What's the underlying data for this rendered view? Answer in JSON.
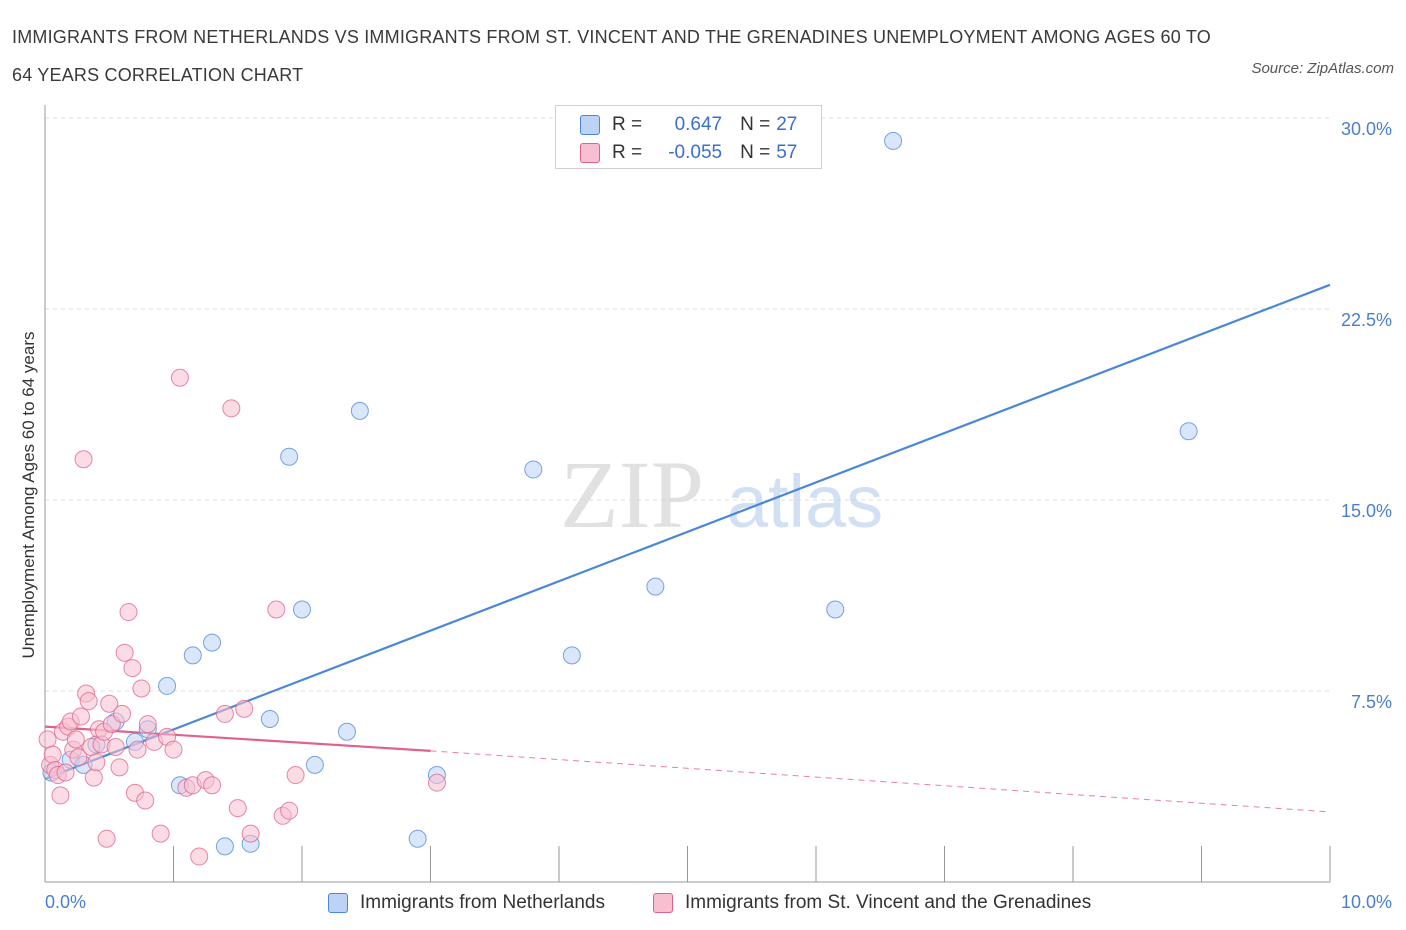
{
  "title": "IMMIGRANTS FROM NETHERLANDS VS IMMIGRANTS FROM ST. VINCENT AND THE GRENADINES UNEMPLOYMENT AMONG AGES 60 TO 64 YEARS CORRELATION CHART",
  "source": "Source: ZipAtlas.com",
  "watermark": {
    "zip": "ZIP",
    "atlas": "atlas"
  },
  "colors": {
    "blue": "#4a87d8",
    "blue_fill": "#bcd3f5",
    "pink": "#e0608e",
    "pink_fill": "#f7bfd0",
    "tick": "#4a7fd0",
    "grid": "#dddddd"
  },
  "legend": {
    "rows": [
      {
        "r_label": "R =",
        "r_value": "0.647",
        "n_label": "N =",
        "n_value": "27"
      },
      {
        "r_label": "R =",
        "r_value": "-0.055",
        "n_label": "N =",
        "n_value": "57"
      }
    ]
  },
  "chart_data": {
    "type": "scatter",
    "title": "IMMIGRANTS FROM NETHERLANDS VS IMMIGRANTS FROM ST. VINCENT AND THE GRENADINES UNEMPLOYMENT AMONG AGES 60 TO 64 YEARS CORRELATION CHART",
    "xlabel": "",
    "ylabel": "Unemployment Among Ages 60 to 64 years",
    "xlim": [
      0,
      10
    ],
    "ylim": [
      0,
      30
    ],
    "x_tick_labels": [
      "0.0%",
      "10.0%"
    ],
    "y_tick_labels": [
      "7.5%",
      "15.0%",
      "22.5%",
      "30.0%"
    ],
    "y_ticks": [
      7.5,
      15,
      22.5,
      30
    ],
    "grid": true,
    "legend_position": "top-center",
    "series": [
      {
        "name": "Immigrants from Netherlands",
        "color": "#4a87d8",
        "points": [
          [
            0.05,
            4.3
          ],
          [
            0.2,
            4.8
          ],
          [
            0.3,
            4.6
          ],
          [
            0.4,
            5.4
          ],
          [
            0.55,
            6.3
          ],
          [
            0.7,
            5.5
          ],
          [
            0.8,
            6.0
          ],
          [
            0.95,
            7.7
          ],
          [
            1.05,
            3.8
          ],
          [
            1.15,
            8.9
          ],
          [
            1.3,
            9.4
          ],
          [
            1.4,
            1.4
          ],
          [
            1.6,
            1.5
          ],
          [
            1.75,
            6.4
          ],
          [
            1.9,
            16.7
          ],
          [
            2.0,
            10.7
          ],
          [
            2.1,
            4.6
          ],
          [
            2.35,
            5.9
          ],
          [
            2.45,
            18.5
          ],
          [
            2.9,
            1.7
          ],
          [
            3.05,
            4.2
          ],
          [
            3.8,
            16.2
          ],
          [
            4.1,
            8.9
          ],
          [
            4.75,
            11.6
          ],
          [
            6.15,
            10.7
          ],
          [
            6.6,
            29.1
          ],
          [
            8.9,
            17.7
          ]
        ],
        "trend": {
          "x": [
            0.0,
            10.0
          ],
          "y": [
            4.05,
            23.45
          ]
        }
      },
      {
        "name": "Immigrants from St. Vincent and the Grenadines",
        "color": "#e0608e",
        "points": [
          [
            0.02,
            5.6
          ],
          [
            0.04,
            4.6
          ],
          [
            0.06,
            5.0
          ],
          [
            0.08,
            4.4
          ],
          [
            0.1,
            4.2
          ],
          [
            0.12,
            3.4
          ],
          [
            0.14,
            5.9
          ],
          [
            0.16,
            4.3
          ],
          [
            0.18,
            6.1
          ],
          [
            0.2,
            6.3
          ],
          [
            0.22,
            5.2
          ],
          [
            0.24,
            5.6
          ],
          [
            0.26,
            4.9
          ],
          [
            0.28,
            6.5
          ],
          [
            0.3,
            16.6
          ],
          [
            0.32,
            7.4
          ],
          [
            0.34,
            7.1
          ],
          [
            0.36,
            5.3
          ],
          [
            0.38,
            4.1
          ],
          [
            0.4,
            4.7
          ],
          [
            0.42,
            6.0
          ],
          [
            0.44,
            5.4
          ],
          [
            0.46,
            5.9
          ],
          [
            0.48,
            1.7
          ],
          [
            0.5,
            7.0
          ],
          [
            0.52,
            6.2
          ],
          [
            0.55,
            5.3
          ],
          [
            0.58,
            4.5
          ],
          [
            0.6,
            6.6
          ],
          [
            0.62,
            9.0
          ],
          [
            0.65,
            10.6
          ],
          [
            0.68,
            8.4
          ],
          [
            0.7,
            3.5
          ],
          [
            0.72,
            5.2
          ],
          [
            0.75,
            7.6
          ],
          [
            0.78,
            3.2
          ],
          [
            0.8,
            6.2
          ],
          [
            0.85,
            5.5
          ],
          [
            0.9,
            1.9
          ],
          [
            0.95,
            5.7
          ],
          [
            1.0,
            5.2
          ],
          [
            1.05,
            19.8
          ],
          [
            1.1,
            3.7
          ],
          [
            1.15,
            3.8
          ],
          [
            1.2,
            1.0
          ],
          [
            1.25,
            4.0
          ],
          [
            1.3,
            3.8
          ],
          [
            1.4,
            6.6
          ],
          [
            1.45,
            18.6
          ],
          [
            1.5,
            2.9
          ],
          [
            1.55,
            6.8
          ],
          [
            1.6,
            1.9
          ],
          [
            1.8,
            10.7
          ],
          [
            1.85,
            2.6
          ],
          [
            1.9,
            2.8
          ],
          [
            1.95,
            4.2
          ],
          [
            3.05,
            3.9
          ]
        ],
        "trend": {
          "x": [
            0.0,
            3.0
          ],
          "y": [
            6.1,
            5.15
          ]
        },
        "trend_extension": {
          "x": [
            3.0,
            10.0
          ],
          "y": [
            5.15,
            2.75
          ]
        }
      }
    ]
  }
}
